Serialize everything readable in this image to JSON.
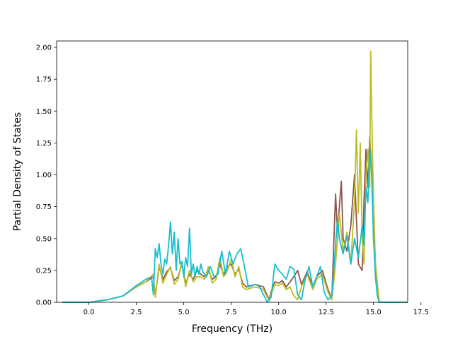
{
  "chart_data": {
    "type": "line",
    "title": "",
    "xlabel": "Frequency (THz)",
    "ylabel": "Partial Density of States",
    "xlim": [
      -1.7,
      16.8
    ],
    "ylim": [
      0.0,
      2.05
    ],
    "xticks": [
      0.0,
      2.5,
      5.0,
      7.5,
      10.0,
      12.5,
      15.0,
      17.5
    ],
    "xtick_labels": [
      "0.0",
      "2.5",
      "5.0",
      "7.5",
      "10.0",
      "12.5",
      "15.0",
      "17.5"
    ],
    "yticks": [
      0.0,
      0.25,
      0.5,
      0.75,
      1.0,
      1.25,
      1.5,
      1.75,
      2.0
    ],
    "ytick_labels": [
      "0.00",
      "0.25",
      "0.50",
      "0.75",
      "1.00",
      "1.25",
      "1.50",
      "1.75",
      "2.00"
    ],
    "grid": false,
    "legend": "none",
    "series": [
      {
        "color": "#8c564b",
        "x": [
          -1.4,
          0.0,
          1.0,
          1.8,
          2.5,
          3.0,
          3.4,
          3.5,
          3.7,
          3.9,
          4.1,
          4.3,
          4.5,
          4.7,
          4.9,
          5.1,
          5.3,
          5.5,
          5.7,
          5.9,
          6.1,
          6.3,
          6.5,
          6.7,
          6.9,
          7.1,
          7.3,
          7.5,
          7.7,
          7.9,
          8.1,
          8.3,
          8.5,
          8.8,
          9.2,
          9.5,
          9.6,
          9.8,
          10.0,
          10.2,
          10.4,
          10.6,
          10.8,
          11.0,
          11.2,
          11.5,
          11.8,
          12.0,
          12.3,
          12.6,
          12.8,
          13.0,
          13.1,
          13.3,
          13.4,
          13.6,
          13.8,
          14.0,
          14.2,
          14.4,
          14.5,
          14.6,
          14.7,
          14.8,
          14.9,
          15.0,
          15.1,
          15.3,
          16.8
        ],
        "y": [
          0.0,
          0.0,
          0.02,
          0.05,
          0.12,
          0.16,
          0.2,
          0.05,
          0.28,
          0.18,
          0.24,
          0.27,
          0.17,
          0.2,
          0.3,
          0.15,
          0.22,
          0.18,
          0.25,
          0.22,
          0.2,
          0.25,
          0.18,
          0.2,
          0.3,
          0.22,
          0.28,
          0.3,
          0.22,
          0.26,
          0.15,
          0.12,
          0.13,
          0.14,
          0.12,
          0.02,
          0.08,
          0.16,
          0.15,
          0.17,
          0.12,
          0.16,
          0.2,
          0.25,
          0.14,
          0.24,
          0.12,
          0.2,
          0.25,
          0.1,
          0.03,
          0.85,
          0.55,
          0.95,
          0.5,
          0.4,
          0.6,
          1.0,
          0.3,
          0.25,
          0.8,
          1.2,
          0.9,
          1.3,
          1.0,
          0.7,
          0.3,
          0.0,
          0.0
        ]
      },
      {
        "color": "#bcbd22",
        "x": [
          -1.4,
          0.0,
          1.0,
          1.8,
          2.5,
          3.0,
          3.4,
          3.5,
          3.7,
          3.9,
          4.1,
          4.3,
          4.5,
          4.7,
          4.9,
          5.1,
          5.3,
          5.5,
          5.7,
          5.9,
          6.1,
          6.3,
          6.5,
          6.7,
          6.9,
          7.1,
          7.3,
          7.5,
          7.7,
          7.9,
          8.1,
          8.3,
          8.5,
          8.8,
          9.2,
          9.5,
          9.6,
          9.8,
          10.0,
          10.2,
          10.4,
          10.6,
          10.8,
          11.0,
          11.2,
          11.5,
          11.8,
          12.0,
          12.3,
          12.6,
          12.8,
          13.0,
          13.2,
          13.4,
          13.6,
          13.8,
          14.0,
          14.1,
          14.2,
          14.3,
          14.4,
          14.5,
          14.6,
          14.7,
          14.8,
          14.85,
          14.9,
          15.0,
          15.1,
          15.3,
          16.8
        ],
        "y": [
          0.0,
          0.0,
          0.02,
          0.05,
          0.12,
          0.16,
          0.22,
          0.04,
          0.3,
          0.15,
          0.22,
          0.28,
          0.14,
          0.18,
          0.32,
          0.12,
          0.25,
          0.16,
          0.2,
          0.2,
          0.18,
          0.28,
          0.15,
          0.18,
          0.35,
          0.2,
          0.25,
          0.34,
          0.2,
          0.28,
          0.12,
          0.1,
          0.11,
          0.12,
          0.1,
          0.01,
          0.06,
          0.14,
          0.13,
          0.15,
          0.1,
          0.12,
          0.05,
          0.02,
          0.12,
          0.22,
          0.1,
          0.18,
          0.22,
          0.08,
          0.02,
          0.3,
          0.7,
          0.4,
          0.55,
          0.3,
          0.8,
          1.35,
          0.7,
          1.25,
          0.5,
          0.3,
          1.0,
          1.2,
          0.9,
          1.97,
          1.5,
          0.8,
          0.3,
          0.0,
          0.0
        ]
      },
      {
        "color": "#17becf",
        "x": [
          -1.4,
          0.0,
          1.0,
          1.8,
          2.5,
          3.0,
          3.3,
          3.4,
          3.5,
          3.6,
          3.7,
          3.8,
          3.9,
          4.0,
          4.1,
          4.2,
          4.3,
          4.4,
          4.5,
          4.6,
          4.7,
          4.8,
          4.9,
          5.0,
          5.1,
          5.2,
          5.3,
          5.4,
          5.5,
          5.6,
          5.7,
          5.8,
          5.9,
          6.0,
          6.2,
          6.4,
          6.6,
          6.8,
          7.0,
          7.2,
          7.4,
          7.6,
          7.8,
          8.0,
          8.2,
          8.4,
          8.6,
          8.8,
          9.0,
          9.2,
          9.4,
          9.6,
          9.8,
          10.0,
          10.2,
          10.4,
          10.6,
          10.8,
          11.0,
          11.2,
          11.4,
          11.6,
          11.8,
          12.0,
          12.2,
          12.4,
          12.6,
          12.8,
          13.0,
          13.1,
          13.2,
          13.4,
          13.6,
          13.8,
          14.0,
          14.2,
          14.4,
          14.5,
          14.6,
          14.7,
          14.8,
          14.9,
          15.0,
          15.1,
          15.2,
          15.3,
          16.8
        ],
        "y": [
          0.0,
          0.0,
          0.02,
          0.05,
          0.13,
          0.18,
          0.2,
          0.06,
          0.42,
          0.35,
          0.46,
          0.3,
          0.22,
          0.34,
          0.3,
          0.45,
          0.63,
          0.38,
          0.55,
          0.25,
          0.5,
          0.3,
          0.32,
          0.2,
          0.35,
          0.28,
          0.58,
          0.22,
          0.3,
          0.2,
          0.28,
          0.22,
          0.3,
          0.24,
          0.2,
          0.28,
          0.2,
          0.22,
          0.4,
          0.22,
          0.4,
          0.3,
          0.38,
          0.42,
          0.28,
          0.12,
          0.13,
          0.14,
          0.12,
          0.06,
          0.0,
          0.04,
          0.3,
          0.25,
          0.22,
          0.18,
          0.28,
          0.26,
          0.06,
          0.02,
          0.18,
          0.28,
          0.12,
          0.2,
          0.28,
          0.08,
          0.02,
          0.05,
          0.45,
          0.65,
          0.5,
          0.38,
          0.52,
          0.3,
          0.5,
          0.35,
          0.6,
          0.45,
          0.9,
          0.78,
          1.2,
          1.0,
          0.5,
          0.2,
          0.05,
          0.0,
          0.0
        ]
      }
    ]
  }
}
